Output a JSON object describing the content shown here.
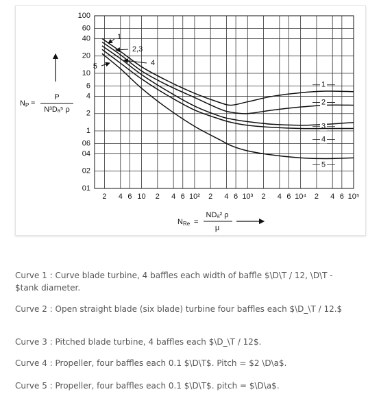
{
  "chart_data": {
    "type": "line",
    "y_label": {
      "symbol": "N",
      "subscript": "P",
      "equals": "=",
      "numerator": "P",
      "denominator": "N³Dₐ⁵ ρ"
    },
    "x_label": {
      "symbol": "N",
      "subscript": "Re",
      "equals": "=",
      "numerator": "NDₐ² ρ",
      "denominator": "μ"
    },
    "x": [
      1.8,
      4,
      10,
      30,
      100,
      300,
      500,
      1000,
      3000,
      10000,
      30000,
      100000
    ],
    "series": [
      {
        "name": "1",
        "color": "#111",
        "values": [
          40,
          24,
          13,
          7.5,
          4.5,
          3.1,
          2.8,
          3.2,
          4,
          4.6,
          4.9,
          4.8
        ]
      },
      {
        "name": "2",
        "color": "#111",
        "values": [
          35,
          21,
          11,
          6.3,
          3.8,
          2.4,
          2.1,
          2,
          2.3,
          2.6,
          2.8,
          2.8
        ]
      },
      {
        "name": "3",
        "color": "#111",
        "values": [
          30,
          18,
          9.5,
          5,
          2.7,
          1.8,
          1.6,
          1.45,
          1.3,
          1.25,
          1.3,
          1.4
        ]
      },
      {
        "name": "4",
        "color": "#111",
        "values": [
          26,
          15,
          8,
          4.2,
          2.3,
          1.6,
          1.4,
          1.25,
          1.15,
          1.1,
          1.1,
          1.1
        ]
      },
      {
        "name": "5",
        "color": "#111",
        "values": [
          22,
          12,
          5.5,
          2.5,
          1.2,
          0.7,
          0.55,
          0.45,
          0.38,
          0.34,
          0.33,
          0.34
        ]
      }
    ],
    "annotations": [
      "1",
      "2,3",
      "4",
      "5"
    ],
    "log_x": true,
    "log_y": true,
    "grid": true,
    "xlim": [
      1.3,
      100000
    ],
    "ylim": [
      0.1,
      100
    ],
    "xticks": [
      2,
      4,
      6,
      10,
      {
        "value": 20,
        "label": "2"
      },
      {
        "value": 40,
        "label": "4"
      },
      {
        "value": 60,
        "label": "6"
      },
      {
        "value": 100,
        "label": "10²"
      },
      {
        "value": 200,
        "label": "2"
      },
      {
        "value": 400,
        "label": "4"
      },
      {
        "value": 600,
        "label": "6"
      },
      {
        "value": 1000,
        "label": "10³"
      },
      {
        "value": 2000,
        "label": "2"
      },
      {
        "value": 4000,
        "label": "4"
      },
      {
        "value": 6000,
        "label": "6"
      },
      {
        "value": 10000,
        "label": "10⁴"
      },
      {
        "value": 20000,
        "label": "2"
      },
      {
        "value": 40000,
        "label": "4"
      },
      {
        "value": 60000,
        "label": "6"
      },
      {
        "value": 100000,
        "label": "10⁵"
      }
    ],
    "yticks": [
      100,
      60,
      40,
      20,
      10,
      6,
      4,
      2,
      1,
      {
        "value": 0.6,
        "label": "06"
      },
      {
        "value": 0.4,
        "label": "04"
      },
      {
        "value": 0.2,
        "label": "02"
      },
      {
        "value": 0.1,
        "label": "01"
      }
    ]
  },
  "captions": [
    "Curve 1 : Curve blade turbine, 4 baffles each width of baffle $\\D\\T / 12, \\D\\T - $tank diameter.",
    "Curve 2 : Open straight blade (six blade) turbine four baffles each $\\D_\\T / 12.$",
    "Curve 3 : Pitched blade turbine, 4 baffles each $\\D_\\T / 12$.",
    "Curve 4 : Propeller, four baffles each 0.1 $\\D\\T$. Pitch = $2 \\D\\a$.",
    "Curve 5 : Propeller, four baffles each 0.1 $\\D\\T$. pitch = $\\D\\a$."
  ]
}
